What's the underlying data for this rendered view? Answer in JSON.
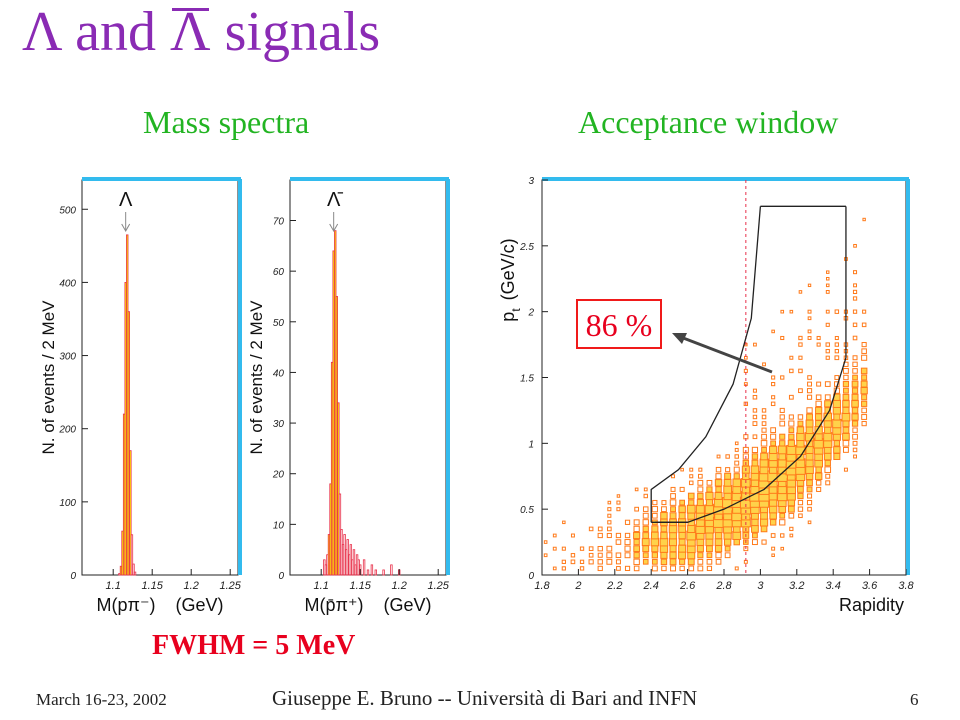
{
  "title": {
    "lambda1": "Λ",
    "and": " and ",
    "lambda2": "Λ",
    "rest": " signals"
  },
  "subtitles": {
    "left": "Mass spectra",
    "right": "Acceptance window"
  },
  "fwhm": "FWHM = 5 MeV",
  "footer": {
    "date": "March 16-23, 2002",
    "author": "Giuseppe E. Bruno -- Università di Bari and INFN",
    "page": "6"
  },
  "annotation": "86 %",
  "colors": {
    "title": "#8a2bb4",
    "subtitle": "#22b422",
    "fwhm": "#e8001e",
    "frame": "#33bbee",
    "hist_fill": "#ffee00",
    "hist_line": "#e8304a",
    "scatter": "#ff7a1a"
  },
  "chart_data": [
    {
      "type": "area",
      "id": "lambda_mass",
      "peak_marker": "Λ",
      "ylabel": "N. of events / 2 MeV",
      "xlabel": "M(pπ⁻)    (GeV)",
      "xlim": [
        1.06,
        1.26
      ],
      "ylim": [
        0,
        540
      ],
      "yticks": [
        0,
        100,
        200,
        300,
        400,
        500
      ],
      "xticks": [
        "1.1",
        "1.15",
        "1.2",
        "1.25"
      ],
      "x": [
        1.108,
        1.11,
        1.112,
        1.114,
        1.116,
        1.118,
        1.12,
        1.122,
        1.124,
        1.126,
        1.128
      ],
      "values": [
        2,
        12,
        60,
        220,
        400,
        465,
        360,
        170,
        55,
        15,
        4
      ],
      "signal_range": [
        1.109,
        1.123
      ]
    },
    {
      "type": "area",
      "id": "antilambda_mass",
      "peak_marker": "Λ̄",
      "ylabel": "N. of events / 2 MeV",
      "xlabel": "M(p̄π⁺)    (GeV)",
      "xlim": [
        1.06,
        1.26
      ],
      "ylim": [
        0,
        78
      ],
      "yticks": [
        0,
        10,
        20,
        30,
        40,
        50,
        60,
        70
      ],
      "xticks": [
        "1.1",
        "1.15",
        "1.2",
        "1.25"
      ],
      "x": [
        1.104,
        1.106,
        1.108,
        1.11,
        1.112,
        1.114,
        1.116,
        1.118,
        1.12,
        1.122,
        1.124,
        1.126,
        1.128,
        1.13,
        1.132,
        1.134,
        1.136,
        1.138,
        1.14,
        1.142,
        1.144,
        1.146,
        1.148,
        1.15,
        1.155,
        1.16,
        1.165,
        1.17,
        1.18,
        1.19,
        1.2
      ],
      "values": [
        3,
        2,
        4,
        8,
        18,
        42,
        64,
        68,
        55,
        34,
        16,
        9,
        6,
        8,
        5,
        7,
        4,
        6,
        3,
        5,
        2,
        4,
        3,
        2,
        3,
        1,
        2,
        1,
        1,
        2,
        1
      ],
      "signal_range": [
        1.109,
        1.123
      ]
    },
    {
      "type": "scatter",
      "id": "acceptance",
      "xlabel": "Rapidity",
      "ylabel": "p",
      "ylabel_sub": "t",
      "ylabel_unit": "(GeV/c)",
      "xlim": [
        1.8,
        3.8
      ],
      "ylim": [
        0,
        3
      ],
      "xticks": [
        "1.8",
        "2",
        "2.2",
        "2.4",
        "2.6",
        "2.8",
        "3",
        "3.2",
        "3.4",
        "3.6",
        "3.8"
      ],
      "yticks": [
        "0",
        "0.5",
        "1",
        "1.5",
        "2",
        "2.5",
        "3"
      ],
      "vline_x": 2.92,
      "window_right": [
        [
          3.47,
          2.8
        ],
        [
          3.47,
          1.65
        ],
        [
          3.38,
          1.25
        ],
        [
          3.22,
          0.9
        ],
        [
          3.02,
          0.65
        ],
        [
          2.8,
          0.5
        ],
        [
          2.6,
          0.4
        ],
        [
          2.42,
          0.4
        ]
      ],
      "window_left": [
        [
          3.0,
          2.8
        ],
        [
          2.95,
          1.95
        ],
        [
          2.85,
          1.45
        ],
        [
          2.7,
          1.05
        ],
        [
          2.55,
          0.8
        ],
        [
          2.4,
          0.65
        ],
        [
          2.4,
          0.4
        ]
      ],
      "acceptance_fraction": "86 %"
    }
  ]
}
